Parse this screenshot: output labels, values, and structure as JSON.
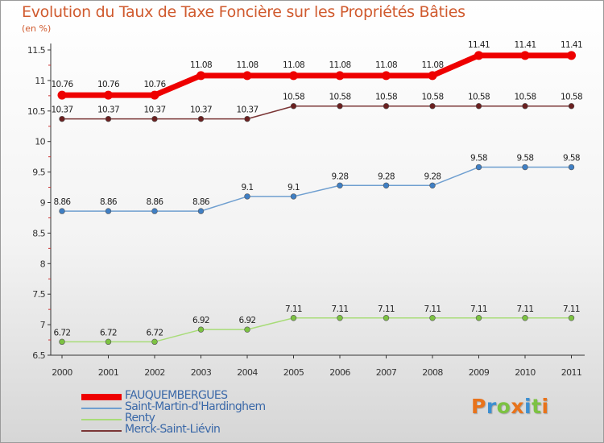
{
  "title": "Evolution du Taux de Taxe Foncière sur les Propriétés Bâties",
  "unit": "(en %)",
  "logo": {
    "text": "Proxiti",
    "letters": [
      "P",
      "r",
      "o",
      "x",
      "i",
      "t",
      "i"
    ],
    "colors": [
      "#e8731b",
      "#3d8fd1",
      "#7cc242",
      "#e8731b",
      "#3d8fd1",
      "#7cc242",
      "#e8731b"
    ]
  },
  "chart_data": {
    "type": "line",
    "title": "Evolution du Taux de Taxe Foncière sur les Propriétés Bâties",
    "ylabel": "(en %)",
    "xlabel": "",
    "categories": [
      "2000",
      "2001",
      "2002",
      "2003",
      "2004",
      "2005",
      "2006",
      "2007",
      "2008",
      "2009",
      "2010",
      "2011"
    ],
    "ylim": [
      6.5,
      11.5
    ],
    "yticks": [
      6.5,
      7,
      7.5,
      8,
      8.5,
      9,
      9.5,
      10,
      10.5,
      11,
      11.5
    ],
    "grid": false,
    "legend_position": "bottom-left",
    "series": [
      {
        "name": "FAUQUEMBERGUES",
        "color": "#ee0000",
        "dot": "#ee0000",
        "width": 7,
        "values": [
          10.76,
          10.76,
          10.76,
          11.08,
          11.08,
          11.08,
          11.08,
          11.08,
          11.08,
          11.41,
          11.41,
          11.41
        ]
      },
      {
        "name": "Saint-Martin-d'Hardinghem",
        "color": "#6f9fd0",
        "dot": "#3f7fc4",
        "width": 1.5,
        "values": [
          8.86,
          8.86,
          8.86,
          8.86,
          9.1,
          9.1,
          9.28,
          9.28,
          9.28,
          9.58,
          9.58,
          9.58
        ]
      },
      {
        "name": "Renty",
        "color": "#a8dc78",
        "dot": "#7cc242",
        "width": 1.5,
        "values": [
          6.72,
          6.72,
          6.72,
          6.92,
          6.92,
          7.11,
          7.11,
          7.11,
          7.11,
          7.11,
          7.11,
          7.11
        ]
      },
      {
        "name": "Merck-Saint-Liévin",
        "color": "#7a3535",
        "dot": "#6a2020",
        "width": 1.5,
        "values": [
          10.37,
          10.37,
          10.37,
          10.37,
          10.37,
          10.58,
          10.58,
          10.58,
          10.58,
          10.58,
          10.58,
          10.58
        ]
      }
    ]
  }
}
